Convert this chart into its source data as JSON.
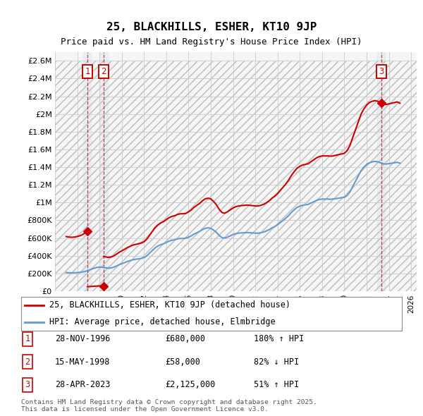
{
  "title1": "25, BLACKHILLS, ESHER, KT10 9JP",
  "title2": "Price paid vs. HM Land Registry's House Price Index (HPI)",
  "ylabel_ticks": [
    "£0",
    "£200K",
    "£400K",
    "£600K",
    "£800K",
    "£1M",
    "£1.2M",
    "£1.4M",
    "£1.6M",
    "£1.8M",
    "£2M",
    "£2.2M",
    "£2.4M",
    "£2.6M"
  ],
  "ytick_values": [
    0,
    200000,
    400000,
    600000,
    800000,
    1000000,
    1200000,
    1400000,
    1600000,
    1800000,
    2000000,
    2200000,
    2400000,
    2600000
  ],
  "xlim_start": 1994.0,
  "xlim_end": 2026.5,
  "grid_color": "#cccccc",
  "sale1_date": 1996.91,
  "sale1_price": 680000,
  "sale2_date": 1998.37,
  "sale2_price": 58000,
  "sale3_date": 2023.32,
  "sale3_price": 2125000,
  "legend_label1": "25, BLACKHILLS, ESHER, KT10 9JP (detached house)",
  "legend_label2": "HPI: Average price, detached house, Elmbridge",
  "table_rows": [
    {
      "num": "1",
      "date": "28-NOV-1996",
      "price": "£680,000",
      "hpi": "180% ↑ HPI"
    },
    {
      "num": "2",
      "date": "15-MAY-1998",
      "price": "£58,000",
      "hpi": "82% ↓ HPI"
    },
    {
      "num": "3",
      "date": "28-APR-2023",
      "price": "£2,125,000",
      "hpi": "51% ↑ HPI"
    }
  ],
  "footer": "Contains HM Land Registry data © Crown copyright and database right 2025.\nThis data is licensed under the Open Government Licence v3.0.",
  "red_color": "#cc0000",
  "blue_color": "#6699cc",
  "hpi_years": [
    1995.0,
    1995.25,
    1995.5,
    1995.75,
    1996.0,
    1996.25,
    1996.5,
    1996.75,
    1997.0,
    1997.25,
    1997.5,
    1997.75,
    1998.0,
    1998.25,
    1998.5,
    1998.75,
    1999.0,
    1999.25,
    1999.5,
    1999.75,
    2000.0,
    2000.25,
    2000.5,
    2000.75,
    2001.0,
    2001.25,
    2001.5,
    2001.75,
    2002.0,
    2002.25,
    2002.5,
    2002.75,
    2003.0,
    2003.25,
    2003.5,
    2003.75,
    2004.0,
    2004.25,
    2004.5,
    2004.75,
    2005.0,
    2005.25,
    2005.5,
    2005.75,
    2006.0,
    2006.25,
    2006.5,
    2006.75,
    2007.0,
    2007.25,
    2007.5,
    2007.75,
    2008.0,
    2008.25,
    2008.5,
    2008.75,
    2009.0,
    2009.25,
    2009.5,
    2009.75,
    2010.0,
    2010.25,
    2010.5,
    2010.75,
    2011.0,
    2011.25,
    2011.5,
    2011.75,
    2012.0,
    2012.25,
    2012.5,
    2012.75,
    2013.0,
    2013.25,
    2013.5,
    2013.75,
    2014.0,
    2014.25,
    2014.5,
    2014.75,
    2015.0,
    2015.25,
    2015.5,
    2015.75,
    2016.0,
    2016.25,
    2016.5,
    2016.75,
    2017.0,
    2017.25,
    2017.5,
    2017.75,
    2018.0,
    2018.25,
    2018.5,
    2018.75,
    2019.0,
    2019.25,
    2019.5,
    2019.75,
    2020.0,
    2020.25,
    2020.5,
    2020.75,
    2021.0,
    2021.25,
    2021.5,
    2021.75,
    2022.0,
    2022.25,
    2022.5,
    2022.75,
    2023.0,
    2023.25,
    2023.5,
    2023.75,
    2024.0,
    2024.25,
    2024.5,
    2024.75,
    2025.0
  ],
  "hpi_values": [
    210000,
    208000,
    207000,
    208000,
    210000,
    213000,
    218000,
    225000,
    235000,
    248000,
    258000,
    268000,
    272000,
    270000,
    265000,
    260000,
    262000,
    270000,
    283000,
    298000,
    310000,
    322000,
    335000,
    345000,
    355000,
    360000,
    365000,
    370000,
    380000,
    400000,
    430000,
    460000,
    490000,
    510000,
    525000,
    535000,
    550000,
    565000,
    575000,
    580000,
    590000,
    595000,
    595000,
    598000,
    610000,
    625000,
    645000,
    660000,
    675000,
    695000,
    710000,
    715000,
    710000,
    690000,
    665000,
    630000,
    605000,
    600000,
    610000,
    625000,
    640000,
    650000,
    655000,
    658000,
    660000,
    662000,
    660000,
    658000,
    655000,
    655000,
    660000,
    668000,
    680000,
    695000,
    715000,
    730000,
    750000,
    775000,
    800000,
    825000,
    855000,
    890000,
    920000,
    945000,
    960000,
    970000,
    975000,
    980000,
    995000,
    1010000,
    1025000,
    1035000,
    1040000,
    1040000,
    1040000,
    1038000,
    1040000,
    1045000,
    1050000,
    1055000,
    1060000,
    1080000,
    1120000,
    1180000,
    1240000,
    1300000,
    1360000,
    1400000,
    1430000,
    1450000,
    1460000,
    1465000,
    1460000,
    1450000,
    1440000,
    1435000,
    1440000,
    1445000,
    1450000,
    1455000,
    1445000
  ]
}
